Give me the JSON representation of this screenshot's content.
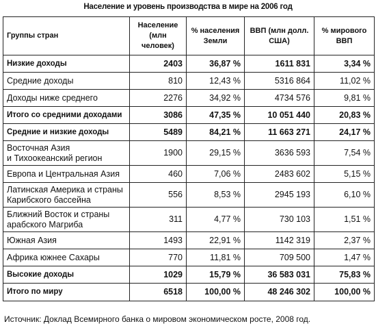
{
  "title": "Население и уровень производства в мире на 2006 год",
  "table": {
    "headers": [
      "Группы стран",
      "Население (млн человек)",
      "% населения Земли",
      "ВВП (млн долл. США)",
      "% мирового ВВП"
    ],
    "rows": [
      {
        "cells": [
          "Низкие доходы",
          "2403",
          "36,87 %",
          "1611 831",
          "3,34 %"
        ],
        "bold": true
      },
      {
        "cells": [
          "Средние доходы",
          "810",
          "12,43 %",
          "5316 864",
          "11,02 %"
        ],
        "bold": false
      },
      {
        "cells": [
          "Доходы ниже среднего",
          "2276",
          "34,92 %",
          "4734 576",
          "9,81 %"
        ],
        "bold": false
      },
      {
        "cells": [
          "Итого со средними доходами",
          "3086",
          "47,35 %",
          "10 051 440",
          "20,83 %"
        ],
        "bold": true
      },
      {
        "cells": [
          "Средние и низкие доходы",
          "5489",
          "84,21 %",
          "11 663 271",
          "24,17 %"
        ],
        "bold": true
      },
      {
        "cells": [
          "Восточная Азия\nи Тихоокеанский регион",
          "1900",
          "29,15 %",
          "3636 593",
          "7,54 %"
        ],
        "bold": false
      },
      {
        "cells": [
          "Европа и Центральная Азия",
          "460",
          "7,06 %",
          "2483 602",
          "5,15 %"
        ],
        "bold": false
      },
      {
        "cells": [
          "Латинская Америка и страны\nКарибского бассейна",
          "556",
          "8,53 %",
          "2945 193",
          "6,10 %"
        ],
        "bold": false
      },
      {
        "cells": [
          "Ближний Восток и страны\nарабского Магриба",
          "311",
          "4,77 %",
          "730 103",
          "1,51 %"
        ],
        "bold": false
      },
      {
        "cells": [
          "Южная Азия",
          "1493",
          "22,91 %",
          "1142 319",
          "2,37 %"
        ],
        "bold": false
      },
      {
        "cells": [
          "Африка южнее Сахары",
          "770",
          "11,81 %",
          "709 500",
          "1,47 %"
        ],
        "bold": false
      },
      {
        "cells": [
          "Высокие доходы",
          "1029",
          "15,79 %",
          "36 583 031",
          "75,83 %"
        ],
        "bold": true
      },
      {
        "cells": [
          "Итого по миру",
          "6518",
          "100,00 %",
          "48 246 302",
          "100,00 %"
        ],
        "bold": true
      }
    ]
  },
  "source": "Источник: Доклад Всемирного банка о мировом экономическом росте, 2008 год."
}
